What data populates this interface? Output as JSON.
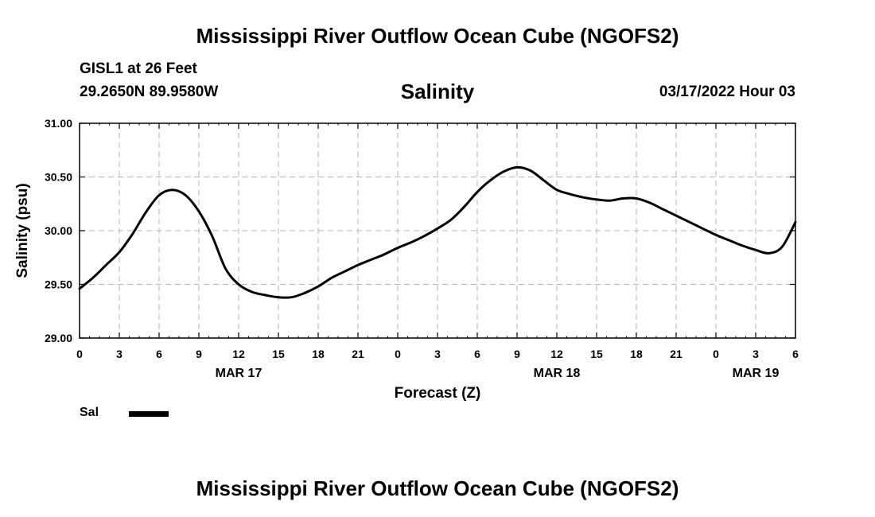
{
  "header": {
    "main_title": "Mississippi River Outflow Ocean Cube (NGOFS2)",
    "station": "GISL1 at 26 Feet",
    "coords": "29.2650N  89.9580W",
    "chart_title": "Salinity",
    "datetime": "03/17/2022 Hour 03"
  },
  "legend": {
    "label": "Sal",
    "color": "#000000"
  },
  "footer": {
    "title": "Mississippi River Outflow Ocean Cube (NGOFS2)"
  },
  "chart_data": {
    "type": "line",
    "title": "Salinity",
    "xlabel": "Forecast (Z)",
    "ylabel": "Salinity (psu)",
    "xlim": [
      0,
      54
    ],
    "ylim": [
      29.0,
      31.0
    ],
    "grid": true,
    "x_ticks": [
      0,
      3,
      6,
      9,
      12,
      15,
      18,
      21,
      24,
      27,
      30,
      33,
      36,
      39,
      42,
      45,
      48,
      51,
      54
    ],
    "x_tick_labels": [
      "0",
      "3",
      "6",
      "9",
      "12",
      "15",
      "18",
      "21",
      "0",
      "3",
      "6",
      "9",
      "12",
      "15",
      "18",
      "21",
      "0",
      "3",
      "6"
    ],
    "date_labels": [
      {
        "x": 12,
        "label": "MAR 17"
      },
      {
        "x": 36,
        "label": "MAR 18"
      },
      {
        "x": 51,
        "label": "MAR 19"
      }
    ],
    "y_ticks": [
      29.0,
      29.5,
      30.0,
      30.5,
      31.0
    ],
    "y_tick_labels": [
      "29.00",
      "29.50",
      "30.00",
      "30.50",
      "31.00"
    ],
    "series": [
      {
        "name": "Sal",
        "color": "#000000",
        "x": [
          0,
          1,
          2,
          3,
          4,
          5,
          6,
          7,
          8,
          9,
          10,
          11,
          12,
          13,
          14,
          15,
          16,
          17,
          18,
          19,
          20,
          21,
          22,
          23,
          24,
          25,
          26,
          27,
          28,
          29,
          30,
          31,
          32,
          33,
          34,
          35,
          36,
          37,
          38,
          39,
          40,
          41,
          42,
          43,
          44,
          45,
          46,
          47,
          48,
          49,
          50,
          51,
          52,
          53,
          54
        ],
        "values": [
          29.46,
          29.56,
          29.68,
          29.8,
          29.97,
          30.17,
          30.33,
          30.38,
          30.33,
          30.18,
          29.95,
          29.65,
          29.5,
          29.43,
          29.4,
          29.38,
          29.38,
          29.42,
          29.48,
          29.56,
          29.62,
          29.68,
          29.73,
          29.78,
          29.84,
          29.89,
          29.95,
          30.02,
          30.1,
          30.22,
          30.36,
          30.47,
          30.55,
          30.59,
          30.56,
          30.47,
          30.38,
          30.34,
          30.31,
          30.29,
          30.28,
          30.3,
          30.3,
          30.26,
          30.2,
          30.14,
          30.08,
          30.02,
          29.96,
          29.91,
          29.86,
          29.82,
          29.79,
          29.85,
          30.08
        ]
      }
    ]
  }
}
